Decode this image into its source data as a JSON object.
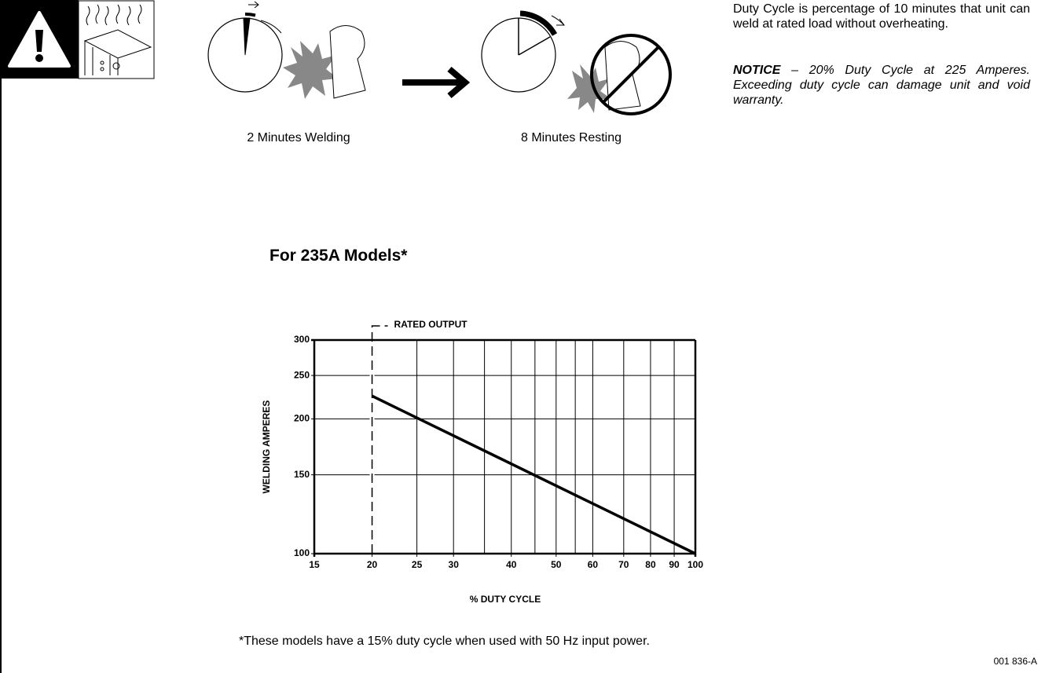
{
  "header": {
    "caption_welding": "2 Minutes Welding",
    "caption_resting": "8 Minutes Resting",
    "description": "Duty Cycle is percentage of 10 minutes that unit can weld at rated load without overheating.",
    "notice_label": "NOTICE",
    "notice_text": "– 20% Duty Cycle at 225 Amperes. Exceeding duty cycle can damage unit and void warranty."
  },
  "chart_data": {
    "type": "line",
    "title": "For 235A Models*",
    "x_label": "% DUTY CYCLE",
    "y_label": "WELDING AMPERES",
    "x": [
      20,
      100
    ],
    "values": [
      225,
      100
    ],
    "color": "#000000",
    "xlim": [
      15,
      100
    ],
    "ylim": [
      100,
      300
    ],
    "xticks": [
      15,
      20,
      25,
      30,
      40,
      50,
      60,
      70,
      80,
      90,
      100
    ],
    "x_minor_grid": [
      35,
      45,
      55
    ],
    "yticks": [
      100,
      150,
      200,
      250,
      300
    ],
    "log_x": true,
    "log_y": true,
    "grid": true,
    "annotation": {
      "label": "RATED OUTPUT",
      "x": 20
    }
  },
  "footnote": "*These models have a 15% duty cycle when used with 50 Hz input power.",
  "doc_code": "001 836-A"
}
